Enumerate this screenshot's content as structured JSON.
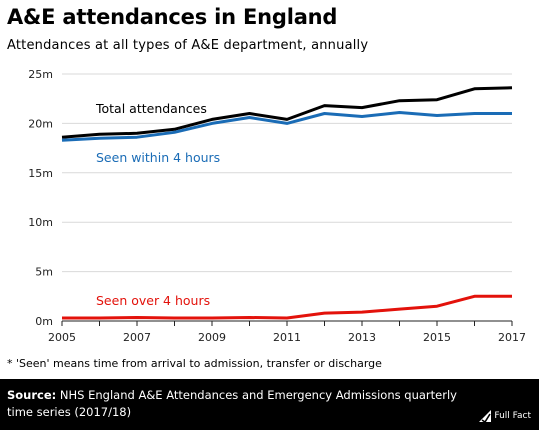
{
  "header": {
    "title": "A&E attendances in England",
    "subtitle": "Attendances at all types of A&E department, annually"
  },
  "footnote": "* 'Seen' means time from arrival to admission, transfer or discharge",
  "footer": {
    "source_label": "Source:",
    "source_text": "NHS England A&E Attendances and Emergency Admissions quarterly time series (2017/18)",
    "logo_text": "Full Fact"
  },
  "chart_data": {
    "type": "line",
    "x": [
      2005,
      2006,
      2007,
      2008,
      2009,
      2010,
      2011,
      2012,
      2013,
      2014,
      2015,
      2016,
      2017
    ],
    "xticks": [
      2005,
      2007,
      2009,
      2011,
      2013,
      2015,
      2017
    ],
    "xtick_labels": [
      "2005",
      "2007",
      "2009",
      "2011",
      "2013",
      "2015",
      "2017"
    ],
    "ylim": [
      0,
      25
    ],
    "yticks": [
      0,
      5,
      10,
      15,
      20,
      25
    ],
    "ytick_labels": [
      "0m",
      "5m",
      "10m",
      "15m",
      "20m",
      "25m"
    ],
    "grid": "horizontal",
    "series": [
      {
        "name": "Total attendances",
        "color": "#000000",
        "values": [
          18.6,
          18.9,
          19.0,
          19.4,
          20.4,
          21.0,
          20.4,
          21.8,
          21.6,
          22.3,
          22.4,
          23.5,
          23.6
        ]
      },
      {
        "name": "Seen within 4 hours",
        "color": "#1a6cb6",
        "values": [
          18.3,
          18.5,
          18.6,
          19.1,
          20.0,
          20.6,
          20.0,
          21.0,
          20.7,
          21.1,
          20.8,
          21.0,
          21.0
        ]
      },
      {
        "name": "Seen over 4 hours",
        "color": "#e3120b",
        "values": [
          0.3,
          0.3,
          0.35,
          0.3,
          0.3,
          0.35,
          0.3,
          0.8,
          0.9,
          1.2,
          1.5,
          2.5,
          2.5
        ]
      }
    ]
  }
}
